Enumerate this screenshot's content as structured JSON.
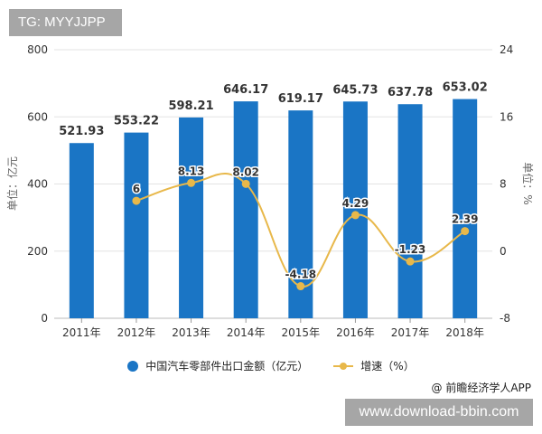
{
  "badges": {
    "top_left": "TG: MYYJJPP",
    "bottom_right": "www.download-bbin.com"
  },
  "source": "@ 前瞻经济学人APP",
  "legend": {
    "bar_label": "中国汽车零部件出口金额（亿元）",
    "line_label": "增速（%）"
  },
  "colors": {
    "bar": "#1a75c5",
    "line": "#e8b84a",
    "grid": "#e3e3e3",
    "axis_text": "#333333"
  },
  "chart_data": {
    "type": "bar+line",
    "title": "",
    "categories": [
      "2011年",
      "2012年",
      "2013年",
      "2014年",
      "2015年",
      "2016年",
      "2017年",
      "2018年"
    ],
    "series": [
      {
        "name": "中国汽车零部件出口金额（亿元）",
        "type": "bar",
        "axis": "left",
        "values": [
          521.93,
          553.22,
          598.21,
          646.17,
          619.17,
          645.73,
          637.78,
          653.02
        ],
        "labels": [
          "521.93",
          "553.22",
          "598.21",
          "646.17",
          "619.17",
          "645.73",
          "637.78",
          "653.02"
        ]
      },
      {
        "name": "增速（%）",
        "type": "line",
        "axis": "right",
        "values": [
          null,
          6,
          8.13,
          8.02,
          -4.18,
          4.29,
          -1.23,
          2.39
        ],
        "labels": [
          "",
          "6",
          "8.13",
          "8.02",
          "-4.18",
          "4.29",
          "-1.23",
          "2.39"
        ]
      }
    ],
    "ylabel": "单位：亿元",
    "y2label": "单位：%",
    "ylim": [
      0,
      800
    ],
    "y2lim": [
      -8,
      24
    ],
    "yticks": [
      "800",
      "600",
      "400",
      "200",
      "0"
    ],
    "y2ticks": [
      "24",
      "16",
      "8",
      "0",
      "-8"
    ],
    "grid": true,
    "legend_position": "bottom"
  }
}
